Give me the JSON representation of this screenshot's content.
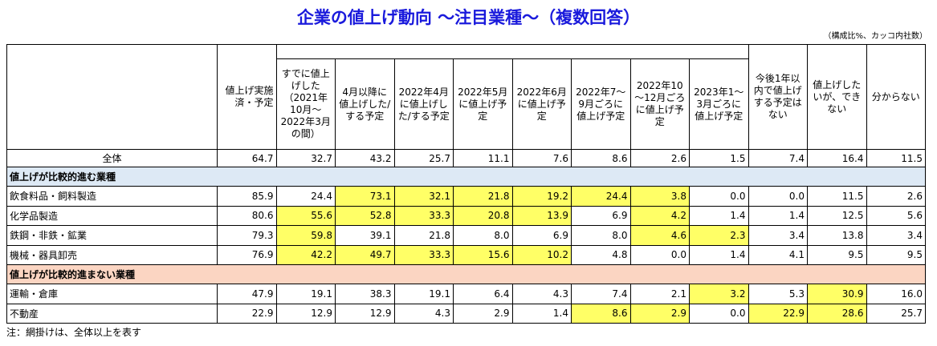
{
  "header": {
    "title": "企業の値上げ動向 ～注目業種～（複数回答）",
    "note": "（構成比%、カッコ内社数）"
  },
  "table": {
    "columns": [
      "値上げ実施済・予定",
      "すでに値上げした（2021年10月～2022年3月の間）",
      "4月以降に値上げした/する予定",
      "2022年4月に値上げした/する予定",
      "2022年5月に値上げ予定",
      "2022年6月に値上げ予定",
      "2022年7～9月ごろに値上げ予定",
      "2022年10～12月ごろに値上げ予定",
      "2023年1～3月ごろに値上げ予定",
      "今後1年以内で値上げする予定はない",
      "値上げしたいが、できない",
      "分からない"
    ],
    "total": {
      "label": "全体",
      "values": [
        "64.7",
        "32.7",
        "43.2",
        "25.7",
        "11.1",
        "7.6",
        "8.6",
        "2.6",
        "1.5",
        "7.4",
        "16.4",
        "11.5"
      ]
    },
    "sections": [
      {
        "title": "値上げが比較的進む業種",
        "color": "#dde9f5",
        "rows": [
          {
            "label": "飲食料品・飼料製造",
            "values": [
              "85.9",
              "24.4",
              "73.1",
              "32.1",
              "21.8",
              "19.2",
              "24.4",
              "3.8",
              "0.0",
              "0.0",
              "11.5",
              "2.6"
            ],
            "highlight": [
              false,
              false,
              true,
              true,
              true,
              true,
              true,
              true,
              false,
              false,
              false,
              false
            ]
          },
          {
            "label": "化学品製造",
            "values": [
              "80.6",
              "55.6",
              "52.8",
              "33.3",
              "20.8",
              "13.9",
              "6.9",
              "4.2",
              "1.4",
              "1.4",
              "12.5",
              "5.6"
            ],
            "highlight": [
              false,
              true,
              true,
              true,
              true,
              true,
              false,
              true,
              false,
              false,
              false,
              false
            ]
          },
          {
            "label": "鉄鋼・非鉄・鉱業",
            "values": [
              "79.3",
              "59.8",
              "39.1",
              "21.8",
              "8.0",
              "6.9",
              "8.0",
              "4.6",
              "2.3",
              "3.4",
              "13.8",
              "3.4"
            ],
            "highlight": [
              false,
              true,
              false,
              false,
              false,
              false,
              false,
              true,
              true,
              false,
              false,
              false
            ]
          },
          {
            "label": "機械・器具卸売",
            "values": [
              "76.9",
              "42.2",
              "49.7",
              "33.3",
              "15.6",
              "10.2",
              "4.8",
              "0.0",
              "1.4",
              "4.1",
              "9.5",
              "9.5"
            ],
            "highlight": [
              false,
              true,
              true,
              true,
              true,
              true,
              false,
              false,
              false,
              false,
              false,
              false
            ]
          }
        ]
      },
      {
        "title": "値上げが比較的進まない業種",
        "color": "#fbd5c2",
        "rows": [
          {
            "label": "運輸・倉庫",
            "values": [
              "47.9",
              "19.1",
              "38.3",
              "19.1",
              "6.4",
              "4.3",
              "7.4",
              "2.1",
              "3.2",
              "5.3",
              "30.9",
              "16.0"
            ],
            "highlight": [
              false,
              false,
              false,
              false,
              false,
              false,
              false,
              false,
              true,
              false,
              true,
              false
            ]
          },
          {
            "label": "不動産",
            "values": [
              "22.9",
              "12.9",
              "12.9",
              "4.3",
              "2.9",
              "1.4",
              "8.6",
              "2.9",
              "0.0",
              "22.9",
              "28.6",
              "25.7"
            ],
            "highlight": [
              false,
              false,
              false,
              false,
              false,
              false,
              true,
              true,
              false,
              true,
              true,
              false
            ]
          }
        ]
      }
    ],
    "highlight_color": "#ffff66"
  },
  "footnote": "注：網掛けは、全体以上を表す"
}
